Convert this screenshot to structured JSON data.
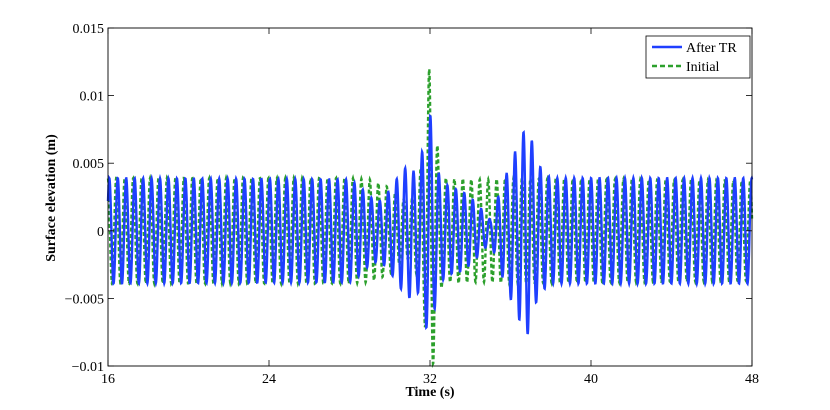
{
  "chart_data": {
    "type": "line",
    "xlabel": "Time (s)",
    "ylabel": "Surface elevation (m)",
    "xlim": [
      16,
      48
    ],
    "ylim": [
      -0.01,
      0.015
    ],
    "x_ticks": [
      16,
      24,
      32,
      40,
      48
    ],
    "x_tick_labels": [
      "16",
      "24",
      "32",
      "40",
      "48"
    ],
    "y_ticks": [
      -0.01,
      -0.005,
      0,
      0.005,
      0.01,
      0.015
    ],
    "y_tick_labels": [
      "−0.01",
      "−0.005",
      "0",
      "0.005",
      "0.01",
      "0.015"
    ],
    "grid": false,
    "legend_position": "top-right",
    "series": [
      {
        "name": "After TR",
        "color": "#1f3fff",
        "style": "solid",
        "carrier_period_s": 0.42,
        "envelope": {
          "t": [
            16,
            28,
            28.5,
            29,
            29.5,
            30,
            30.5,
            31,
            31.3,
            31.6,
            31.8,
            32.0,
            32.2,
            32.5,
            33,
            33.5,
            34,
            34.5,
            35,
            35.5,
            36,
            36.5,
            36.8,
            37.0,
            37.2,
            37.6,
            38,
            48
          ],
          "amplitude": [
            0.0039,
            0.0038,
            0.0033,
            0.0025,
            0.0022,
            0.003,
            0.0042,
            0.005,
            0.004,
            0.0058,
            0.007,
            0.0088,
            0.006,
            0.0038,
            0.0032,
            0.003,
            0.0025,
            0.0017,
            0.0008,
            0.003,
            0.005,
            0.0068,
            0.0078,
            0.0072,
            0.0055,
            0.0044,
            0.0039,
            0.0039
          ]
        }
      },
      {
        "name": "Initial",
        "color": "#2ca02c",
        "style": "dashed",
        "carrier_period_s": 0.42,
        "envelope": {
          "t": [
            16,
            28,
            29,
            30,
            30.5,
            31,
            31.4,
            31.7,
            32.0,
            32.3,
            32.6,
            33,
            33.5,
            34,
            35,
            36,
            48
          ],
          "amplitude": [
            0.0039,
            0.0039,
            0.0038,
            0.0032,
            0.0025,
            0.002,
            0.0035,
            0.006,
            0.013,
            0.007,
            0.004,
            0.0038,
            0.0039,
            0.0038,
            0.0038,
            0.0039,
            0.0037
          ]
        }
      }
    ]
  }
}
